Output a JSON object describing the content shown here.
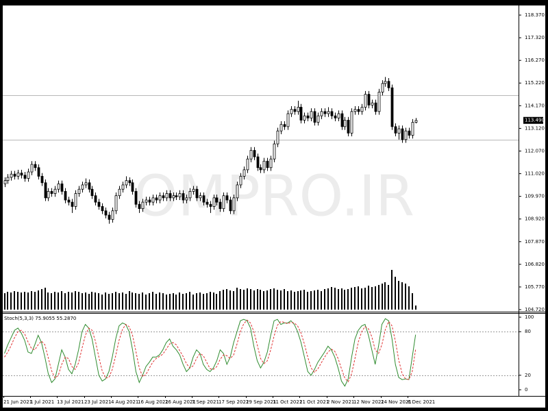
{
  "chart_data": [
    {
      "type": "candlestick",
      "watermark": "OMPRO.IR",
      "ylim": [
        104.625,
        118.815
      ],
      "yticks": [
        {
          "value": 118.37,
          "label": "118.370"
        },
        {
          "value": 117.32,
          "label": "117.320"
        },
        {
          "value": 116.27,
          "label": "116.270"
        },
        {
          "value": 115.22,
          "label": "115.220"
        },
        {
          "value": 114.17,
          "label": "114.170"
        },
        {
          "value": 113.12,
          "label": "113.120"
        },
        {
          "value": 112.07,
          "label": "112.070"
        },
        {
          "value": 111.02,
          "label": "111.020"
        },
        {
          "value": 109.97,
          "label": "109.970"
        },
        {
          "value": 108.92,
          "label": "108.920"
        },
        {
          "value": 107.87,
          "label": "107.870"
        },
        {
          "value": 106.82,
          "label": "106.820"
        },
        {
          "value": 105.77,
          "label": "105.770"
        },
        {
          "value": 104.72,
          "label": "104.720"
        }
      ],
      "levels": [
        114.65,
        112.58
      ],
      "last_price": {
        "value": 113.49,
        "label": "113.490"
      },
      "date_labels": [
        "21 Jun 2021",
        "1 Jul 2021",
        "13 Jul 2021",
        "23 Jul 2021",
        "4 Aug 2021",
        "16 Aug 2021",
        "26 Aug 2021",
        "7 Sep 2021",
        "17 Sep 2021",
        "29 Sep 2021",
        "11 Oct 2021",
        "21 Oct 2021",
        "2 Nov 2021",
        "12 Nov 2021",
        "24 Nov 2021",
        "6 Dec 2021"
      ],
      "ohlc": [
        [
          110.55,
          110.85,
          110.4,
          110.7
        ],
        [
          110.7,
          111.0,
          110.55,
          110.85
        ],
        [
          110.85,
          111.15,
          110.7,
          111.0
        ],
        [
          111.0,
          111.15,
          110.75,
          110.9
        ],
        [
          110.9,
          111.2,
          110.75,
          111.05
        ],
        [
          111.05,
          111.2,
          110.8,
          110.95
        ],
        [
          110.95,
          111.1,
          110.65,
          110.8
        ],
        [
          110.8,
          111.25,
          110.65,
          111.1
        ],
        [
          111.1,
          111.6,
          110.95,
          111.45
        ],
        [
          111.45,
          111.6,
          111.15,
          111.3
        ],
        [
          111.3,
          111.45,
          110.75,
          110.9
        ],
        [
          110.9,
          111.05,
          110.45,
          110.6
        ],
        [
          110.6,
          110.75,
          109.75,
          109.9
        ],
        [
          109.9,
          110.35,
          109.75,
          110.2
        ],
        [
          110.2,
          110.35,
          109.95,
          110.1
        ],
        [
          110.1,
          110.45,
          109.95,
          110.3
        ],
        [
          110.3,
          110.7,
          110.15,
          110.55
        ],
        [
          110.55,
          110.7,
          110.05,
          110.2
        ],
        [
          110.2,
          110.35,
          109.65,
          109.8
        ],
        [
          109.8,
          109.95,
          109.55,
          109.7
        ],
        [
          109.7,
          109.85,
          109.2,
          109.5
        ],
        [
          109.5,
          110.25,
          109.35,
          110.1
        ],
        [
          110.1,
          110.45,
          109.95,
          110.3
        ],
        [
          110.3,
          110.65,
          110.15,
          110.5
        ],
        [
          110.5,
          110.8,
          110.35,
          110.6
        ],
        [
          110.6,
          110.75,
          110.15,
          110.3
        ],
        [
          110.3,
          110.45,
          109.85,
          110.0
        ],
        [
          110.0,
          110.15,
          109.55,
          109.7
        ],
        [
          109.7,
          109.85,
          109.35,
          109.5
        ],
        [
          109.5,
          109.65,
          109.15,
          109.3
        ],
        [
          109.3,
          109.45,
          108.95,
          109.1
        ],
        [
          109.1,
          109.25,
          108.7,
          108.9
        ],
        [
          108.9,
          109.45,
          108.75,
          109.3
        ],
        [
          109.3,
          110.15,
          109.15,
          110.0
        ],
        [
          110.0,
          110.45,
          109.85,
          110.3
        ],
        [
          110.3,
          110.65,
          110.15,
          110.5
        ],
        [
          110.5,
          110.9,
          110.35,
          110.7
        ],
        [
          110.7,
          110.85,
          110.45,
          110.6
        ],
        [
          110.6,
          110.75,
          110.05,
          110.2
        ],
        [
          110.2,
          110.35,
          109.45,
          109.6
        ],
        [
          109.6,
          109.75,
          109.2,
          109.4
        ],
        [
          109.4,
          109.85,
          109.25,
          109.7
        ],
        [
          109.7,
          109.95,
          109.55,
          109.8
        ],
        [
          109.8,
          109.95,
          109.55,
          109.7
        ],
        [
          109.7,
          110.05,
          109.55,
          109.9
        ],
        [
          109.9,
          110.05,
          109.65,
          109.8
        ],
        [
          109.8,
          110.15,
          109.65,
          110.0
        ],
        [
          110.0,
          110.15,
          109.75,
          109.9
        ],
        [
          109.9,
          110.25,
          109.75,
          110.1
        ],
        [
          110.1,
          110.25,
          109.75,
          109.9
        ],
        [
          109.9,
          110.15,
          109.75,
          110.0
        ],
        [
          110.0,
          110.15,
          109.8,
          109.95
        ],
        [
          109.95,
          110.25,
          109.8,
          110.1
        ],
        [
          110.1,
          110.25,
          109.65,
          109.8
        ],
        [
          109.8,
          110.05,
          109.65,
          109.9
        ],
        [
          109.9,
          110.35,
          109.75,
          110.2
        ],
        [
          110.2,
          110.45,
          110.05,
          110.3
        ],
        [
          110.3,
          110.45,
          109.75,
          109.9
        ],
        [
          109.9,
          110.15,
          109.75,
          110.0
        ],
        [
          110.0,
          110.15,
          109.55,
          109.7
        ],
        [
          109.7,
          109.85,
          109.45,
          109.6
        ],
        [
          109.6,
          109.75,
          109.2,
          109.5
        ],
        [
          109.5,
          110.05,
          109.35,
          109.9
        ],
        [
          109.9,
          110.05,
          109.55,
          109.7
        ],
        [
          109.7,
          109.85,
          109.25,
          109.4
        ],
        [
          109.4,
          110.15,
          109.25,
          110.0
        ],
        [
          110.0,
          110.15,
          109.65,
          109.8
        ],
        [
          109.8,
          109.95,
          109.15,
          109.3
        ],
        [
          109.3,
          110.05,
          109.15,
          109.9
        ],
        [
          109.9,
          110.65,
          109.75,
          110.5
        ],
        [
          110.5,
          111.05,
          110.35,
          110.9
        ],
        [
          110.9,
          111.35,
          110.75,
          111.2
        ],
        [
          111.2,
          111.85,
          111.05,
          111.7
        ],
        [
          111.7,
          112.25,
          111.55,
          112.1
        ],
        [
          112.1,
          112.25,
          111.65,
          111.8
        ],
        [
          111.8,
          111.95,
          111.15,
          111.3
        ],
        [
          111.3,
          111.45,
          111.05,
          111.2
        ],
        [
          111.2,
          111.75,
          111.05,
          111.6
        ],
        [
          111.6,
          111.75,
          111.15,
          111.3
        ],
        [
          111.3,
          111.85,
          111.15,
          111.7
        ],
        [
          111.7,
          112.55,
          111.55,
          112.4
        ],
        [
          112.4,
          113.15,
          112.25,
          113.0
        ],
        [
          113.0,
          113.45,
          112.85,
          113.3
        ],
        [
          113.3,
          113.45,
          113.05,
          113.2
        ],
        [
          113.2,
          113.95,
          113.05,
          113.8
        ],
        [
          113.8,
          114.15,
          113.65,
          114.0
        ],
        [
          114.0,
          114.15,
          113.75,
          113.9
        ],
        [
          113.9,
          114.4,
          113.75,
          114.1
        ],
        [
          114.1,
          114.25,
          113.35,
          113.5
        ],
        [
          113.5,
          113.85,
          113.35,
          113.7
        ],
        [
          113.7,
          113.85,
          113.45,
          113.6
        ],
        [
          113.6,
          114.05,
          113.45,
          113.9
        ],
        [
          113.9,
          114.05,
          113.25,
          113.4
        ],
        [
          113.4,
          113.85,
          113.25,
          113.7
        ],
        [
          113.7,
          114.05,
          113.55,
          113.9
        ],
        [
          113.9,
          114.05,
          113.65,
          113.8
        ],
        [
          113.8,
          114.1,
          113.65,
          113.9
        ],
        [
          113.9,
          114.05,
          113.55,
          113.7
        ],
        [
          113.7,
          113.85,
          113.45,
          113.6
        ],
        [
          113.6,
          113.95,
          113.45,
          113.8
        ],
        [
          113.8,
          113.95,
          113.05,
          113.2
        ],
        [
          113.2,
          113.65,
          113.05,
          113.5
        ],
        [
          113.5,
          113.65,
          112.75,
          112.9
        ],
        [
          112.9,
          114.05,
          112.75,
          113.9
        ],
        [
          113.9,
          114.15,
          113.75,
          114.0
        ],
        [
          114.0,
          114.15,
          113.75,
          113.9
        ],
        [
          113.9,
          114.25,
          113.75,
          114.1
        ],
        [
          114.1,
          114.85,
          113.95,
          114.7
        ],
        [
          114.7,
          114.85,
          114.05,
          114.2
        ],
        [
          114.2,
          114.45,
          114.05,
          114.3
        ],
        [
          114.3,
          114.45,
          113.75,
          113.9
        ],
        [
          113.9,
          114.95,
          113.75,
          114.8
        ],
        [
          114.8,
          115.35,
          114.65,
          115.2
        ],
        [
          115.2,
          115.5,
          115.05,
          115.3
        ],
        [
          115.3,
          115.45,
          114.85,
          115.0
        ],
        [
          115.0,
          115.15,
          113.05,
          113.2
        ],
        [
          113.2,
          113.35,
          112.75,
          112.9
        ],
        [
          112.9,
          113.25,
          112.6,
          113.1
        ],
        [
          113.1,
          113.25,
          112.45,
          112.6
        ],
        [
          112.6,
          113.15,
          112.45,
          113.0
        ],
        [
          113.0,
          113.15,
          112.65,
          112.8
        ],
        [
          112.8,
          113.55,
          112.65,
          113.4
        ],
        [
          113.4,
          113.6,
          113.35,
          113.49
        ]
      ],
      "volume": [
        24,
        26,
        25,
        27,
        26,
        25,
        26,
        25,
        27,
        26,
        28,
        30,
        32,
        25,
        24,
        26,
        25,
        27,
        24,
        26,
        25,
        27,
        26,
        24,
        25,
        23,
        26,
        25,
        24,
        22,
        25,
        23,
        24,
        26,
        24,
        25,
        23,
        27,
        25,
        24,
        23,
        25,
        22,
        24,
        26,
        23,
        25,
        24,
        22,
        23,
        24,
        22,
        25,
        23,
        24,
        26,
        22,
        24,
        25,
        23,
        24,
        26,
        25,
        23,
        27,
        29,
        30,
        28,
        27,
        32,
        30,
        29,
        31,
        30,
        28,
        30,
        29,
        27,
        28,
        30,
        31,
        29,
        28,
        30,
        27,
        28,
        26,
        27,
        28,
        29,
        26,
        27,
        28,
        29,
        27,
        30,
        31,
        33,
        32,
        30,
        31,
        29,
        30,
        32,
        33,
        34,
        31,
        32,
        35,
        33,
        34,
        36,
        38,
        40,
        36,
        58,
        48,
        42,
        40,
        38,
        34,
        24,
        6
      ]
    },
    {
      "type": "line",
      "title": "Stoch(5,3,3) 75.9055 55.2870",
      "ylim": [
        -8.5,
        105.7
      ],
      "yticks": [
        100,
        80,
        20,
        0
      ],
      "levels": [
        80,
        20
      ],
      "series": [
        {
          "color": "#2e8b2e",
          "values": [
            50,
            62,
            72,
            82,
            85,
            78,
            68,
            52,
            50,
            62,
            75,
            65,
            45,
            22,
            10,
            15,
            35,
            55,
            45,
            28,
            22,
            35,
            55,
            80,
            90,
            85,
            70,
            45,
            20,
            12,
            15,
            25,
            45,
            70,
            88,
            92,
            90,
            80,
            55,
            25,
            10,
            20,
            32,
            38,
            45,
            45,
            48,
            55,
            65,
            70,
            60,
            55,
            48,
            35,
            25,
            30,
            45,
            55,
            50,
            35,
            28,
            25,
            30,
            40,
            55,
            50,
            35,
            45,
            65,
            80,
            95,
            97,
            95,
            85,
            60,
            40,
            30,
            38,
            52,
            75,
            95,
            97,
            90,
            92,
            92,
            95,
            90,
            80,
            65,
            45,
            25,
            20,
            28,
            38,
            45,
            52,
            60,
            55,
            45,
            30,
            12,
            5,
            15,
            45,
            70,
            82,
            88,
            90,
            75,
            55,
            35,
            60,
            90,
            98,
            95,
            70,
            35,
            17,
            14,
            15,
            14,
            45,
            75.9055
          ]
        },
        {
          "color": "#e03030",
          "dashed": true,
          "values": [
            45,
            52,
            61,
            72,
            80,
            82,
            77,
            66,
            57,
            55,
            62,
            67,
            62,
            44,
            26,
            16,
            20,
            35,
            45,
            43,
            32,
            28,
            37,
            57,
            75,
            85,
            82,
            67,
            45,
            26,
            16,
            17,
            28,
            47,
            68,
            83,
            90,
            87,
            75,
            53,
            30,
            18,
            21,
            30,
            38,
            43,
            46,
            49,
            56,
            63,
            65,
            62,
            54,
            46,
            36,
            30,
            33,
            43,
            50,
            47,
            38,
            29,
            28,
            32,
            42,
            48,
            47,
            43,
            48,
            63,
            80,
            91,
            96,
            92,
            80,
            62,
            43,
            36,
            40,
            55,
            74,
            89,
            94,
            93,
            91,
            93,
            92,
            88,
            78,
            63,
            45,
            30,
            24,
            29,
            37,
            45,
            52,
            56,
            53,
            43,
            29,
            16,
            11,
            22,
            43,
            66,
            80,
            87,
            84,
            73,
            55,
            50,
            62,
            83,
            94,
            88,
            67,
            41,
            22,
            15,
            14,
            25,
            55.287
          ]
        }
      ]
    }
  ]
}
